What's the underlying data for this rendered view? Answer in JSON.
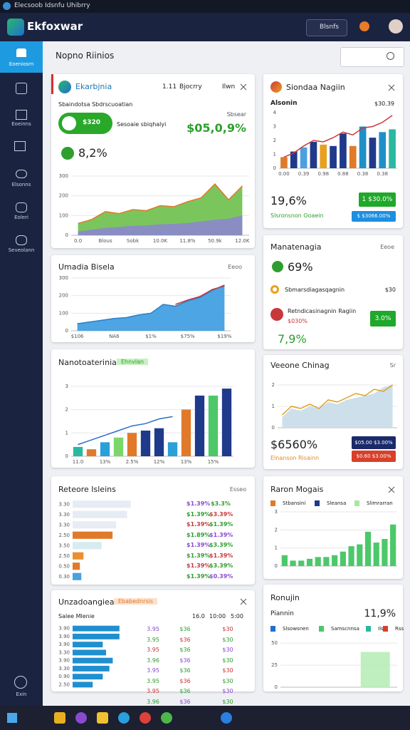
{
  "window_title": "Elecsoob Idsnfu Uhibrry",
  "app": {
    "name": "Ekfoxwar",
    "button": "Blsnfs"
  },
  "sidebar": {
    "items": [
      "Eoeniosrn",
      "Eoeinns",
      "Elsonns",
      "Eoleri",
      "Seveolann"
    ],
    "footer": "Exin"
  },
  "page_title": "Nopno Riinios",
  "cards": [
    {
      "title": "Ekarbjnia",
      "meta": [
        "1.11",
        "Bjocrry",
        "Ilwn"
      ],
      "subtitle": "Sbaindotsa Sbdrscuoatian",
      "pill": "$320",
      "note": "Sesoaie sbiqhalyi",
      "kpi_label": "Sbsear",
      "kpi": "$05,0,9%",
      "change": "8,2%",
      "chart": {
        "type": "area",
        "grid": true,
        "categories": [
          "0.0",
          null,
          "Blous",
          null,
          "Sobk",
          null,
          "10.0K",
          null,
          "11.8%",
          null,
          "50.9k",
          null,
          "12.0K"
        ],
        "ylim": [
          0,
          340
        ],
        "yticks": [
          0,
          100,
          200,
          300
        ],
        "series": [
          {
            "type": "area",
            "color": "#6cc04a",
            "line_color": "#e0792a",
            "values": [
              60,
              80,
              120,
              110,
              130,
              125,
              150,
              145,
              170,
              190,
              260,
              180,
              250
            ]
          },
          {
            "type": "area",
            "color": "#8c86cc",
            "values": [
              20,
              28,
              38,
              42,
              48,
              50,
              55,
              58,
              62,
              70,
              78,
              84,
              100
            ]
          }
        ]
      }
    },
    {
      "title": "Siondaa Nagiin",
      "label": "Alsonin",
      "label_value": "$30.39",
      "kpi": "19,6%",
      "button_1": "1 $30.0%",
      "note": "Slsronsnon Ooaein",
      "button_2": "$ $3066.00%",
      "chart": {
        "type": "bar",
        "grid": false,
        "categories": [
          "0.00",
          null,
          "0.39",
          null,
          "0.98",
          null,
          "0.88",
          null,
          "0.38",
          null,
          "0.38",
          null
        ],
        "ylim": [
          0,
          4
        ],
        "yticks": [
          0,
          1,
          2,
          3,
          4
        ],
        "series": [
          {
            "type": "bar",
            "colors": [
              "#e07a2a",
              "#1f3a8a",
              "#4aa0e0",
              "#1f3a8a",
              "#e8a020",
              "#1f3a8a",
              "#1f3a8a",
              "#e07a2a",
              "#1f8fc8",
              "#1f3a8a",
              "#1f8fc8",
              "#2ab8a0"
            ],
            "values": [
              0.8,
              1.2,
              1.5,
              1.9,
              1.7,
              1.6,
              2.5,
              1.6,
              3.0,
              2.2,
              2.6,
              2.8
            ]
          },
          {
            "type": "line",
            "color": "#c8383a",
            "values": [
              0.8,
              1.1,
              1.6,
              2.0,
              1.9,
              2.2,
              2.6,
              2.4,
              2.9,
              3.0,
              3.3,
              3.8
            ]
          }
        ]
      }
    },
    {
      "title": "Umadia Bisela",
      "menu": "Eeoo",
      "chart": {
        "type": "area",
        "grid": true,
        "categories": [
          "$106",
          null,
          null,
          "NA6",
          null,
          null,
          "$1%",
          null,
          null,
          "$75%",
          null,
          null,
          "$19%"
        ],
        "ylim": [
          0,
          300
        ],
        "yticks": [
          0,
          100,
          200,
          300
        ],
        "series": [
          {
            "type": "area",
            "color": "#3a9be0",
            "line_color": "#2a7fc8",
            "values": [
              40,
              50,
              60,
              70,
              75,
              90,
              100,
              150,
              140,
              170,
              190,
              230,
              260
            ]
          },
          {
            "type": "line",
            "color": "#c8383a",
            "values": [
              null,
              null,
              null,
              null,
              null,
              null,
              null,
              null,
              150,
              175,
              195,
              235,
              255
            ]
          }
        ]
      }
    },
    {
      "title": "Manatenagia",
      "menu": "Eeoe",
      "kpi": "69%",
      "rows": [
        {
          "label": "Sbmarsdiagasqagnin",
          "value": "$30"
        },
        {
          "label": "Retndicasinagnin Ragiin",
          "value": "$030%"
        }
      ],
      "button": "3.0%",
      "change": "7,9%"
    },
    {
      "title": "Nanotoaterinia",
      "tag": "Ehnvlan",
      "chart": {
        "type": "bar",
        "grid": true,
        "categories": [
          "11.0",
          null,
          "13%",
          null,
          "2.5%",
          null,
          "12%",
          null,
          "13%",
          null,
          "15%",
          null
        ],
        "ylim": [
          0,
          3.3
        ],
        "yticks": [
          0,
          1,
          2,
          3
        ],
        "series": [
          {
            "type": "bar",
            "colors": [
              "#2ab8a0",
              "#e07a2a",
              "#2a9fd8",
              "#7ad86a",
              "#e07a2a",
              "#1f3a8a",
              "#1f3a8a",
              "#2a9fd8",
              "#e07a2a",
              "#1f3a8a",
              "#4cc86a",
              "#1f3a8a"
            ],
            "values": [
              0.4,
              0.3,
              0.6,
              0.8,
              1.0,
              1.1,
              1.2,
              0.6,
              2.0,
              2.6,
              2.6,
              2.9
            ]
          },
          {
            "type": "line",
            "color": "#2a6fc8",
            "values": [
              0.5,
              0.7,
              0.9,
              1.1,
              1.3,
              1.4,
              1.6,
              1.7,
              null,
              null,
              null,
              null
            ]
          }
        ]
      }
    },
    {
      "title": "Veeone Chinag",
      "menu": "Sr",
      "kpi": "$6560%",
      "note": "Elnanson Risainn",
      "button_1": "$05.00 $3.00%",
      "button_2": "$0.60 $3.00%",
      "chart": {
        "type": "area",
        "grid": true,
        "ylim": [
          0,
          2.4
        ],
        "yticks": [
          0,
          1,
          2
        ],
        "series": [
          {
            "type": "area",
            "color": "#c8dce8",
            "values": [
              0.5,
              0.9,
              0.8,
              1.0,
              0.9,
              1.2,
              1.1,
              1.3,
              1.4,
              1.5,
              1.6,
              1.9,
              2.0
            ]
          },
          {
            "type": "line",
            "color": "#e0a020",
            "values": [
              0.6,
              1.0,
              0.9,
              1.1,
              0.9,
              1.3,
              1.2,
              1.4,
              1.6,
              1.5,
              1.8,
              1.7,
              2.0
            ]
          }
        ]
      }
    },
    {
      "title": "Reteore Isleins",
      "menu": "Esseo",
      "chart": {
        "type": "hbar",
        "categories": [
          "3.30",
          "3.30",
          "3.30",
          "2.50",
          "3.50",
          "2.50",
          "0.50",
          "0.30"
        ],
        "xlim": [
          0,
          100
        ],
        "series": [
          {
            "type": "bar",
            "colors": [
              "#e6ecf4",
              "#e6ecf4",
              "#e8ecf4",
              "#e07a2a",
              "#d8ecf0",
              "#e89030",
              "#e07a2a",
              "#4aa0e0"
            ],
            "values": [
              80,
              75,
              60,
              55,
              40,
              15,
              10,
              12
            ]
          }
        ]
      },
      "table": [
        [
          "$1.39%",
          "$3.3%"
        ],
        [
          "$1.39%",
          "$3.39%"
        ],
        [
          "$1.39%",
          "$1.39%"
        ],
        [
          "$1.89%",
          "$1.39%"
        ],
        [
          "$1.39%",
          "$3.39%"
        ],
        [
          "$1.39%",
          "$1.39%"
        ],
        [
          "$1.39%",
          "$3.39%"
        ],
        [
          "$1.39%",
          "$0.39%"
        ]
      ]
    },
    {
      "title": "Raron Mogais",
      "legend": [
        "Stbansini",
        "Sleansa",
        "Slimrarran"
      ],
      "chart": {
        "type": "bar",
        "grid": true,
        "ylim": [
          0,
          3
        ],
        "yticks": [
          0,
          1,
          2,
          3
        ],
        "series": [
          {
            "type": "bar",
            "color": "#4cc86a",
            "values": [
              0.6,
              0.3,
              0.3,
              0.4,
              0.5,
              0.5,
              0.6,
              0.8,
              1.1,
              1.2,
              1.9,
              1.3,
              1.5,
              2.3
            ]
          }
        ]
      }
    },
    {
      "title": "Unzadoangiea",
      "tag": "Ebabednrsis",
      "subtitle": "Salee Mlenie",
      "table_header": [
        "16.0",
        "10:00",
        "5:00"
      ],
      "chart": {
        "type": "hbar",
        "categories": [
          "3.90",
          "3.90",
          "3.90",
          "3.30",
          "3.90",
          "3.30",
          "0.90",
          "2.50"
        ],
        "xlim": [
          0,
          100
        ],
        "series": [
          {
            "type": "bar",
            "color": "#1f8fd0",
            "values": [
              70,
              70,
              45,
              50,
              60,
              55,
              45,
              30
            ]
          }
        ]
      },
      "table": [
        [
          "3.95",
          "$36",
          "$30"
        ],
        [
          "3.95",
          "$36",
          "$30"
        ],
        [
          "3.95",
          "$36",
          "$30"
        ],
        [
          "3.96",
          "$36",
          "$30"
        ],
        [
          "3.95",
          "$36",
          "$30"
        ],
        [
          "3.95",
          "$36",
          "$30"
        ],
        [
          "3.95",
          "$36",
          "$30"
        ],
        [
          "3.96",
          "$36",
          "$30"
        ]
      ]
    },
    {
      "title": "Ronujin",
      "label": "Piannin",
      "kpi": "11,9%",
      "legend": [
        "Slsowsnen",
        "Samscnnsa",
        "Ils",
        "Rss"
      ],
      "chart": {
        "type": "area",
        "grid": true,
        "ylim": [
          0,
          55
        ],
        "yticks": [
          0,
          25,
          50
        ],
        "series": [
          {
            "type": "area",
            "color": "#b8ecb8",
            "values": [
              null,
              null,
              null,
              null,
              null,
              40,
              40,
              40
            ]
          }
        ]
      }
    }
  ]
}
